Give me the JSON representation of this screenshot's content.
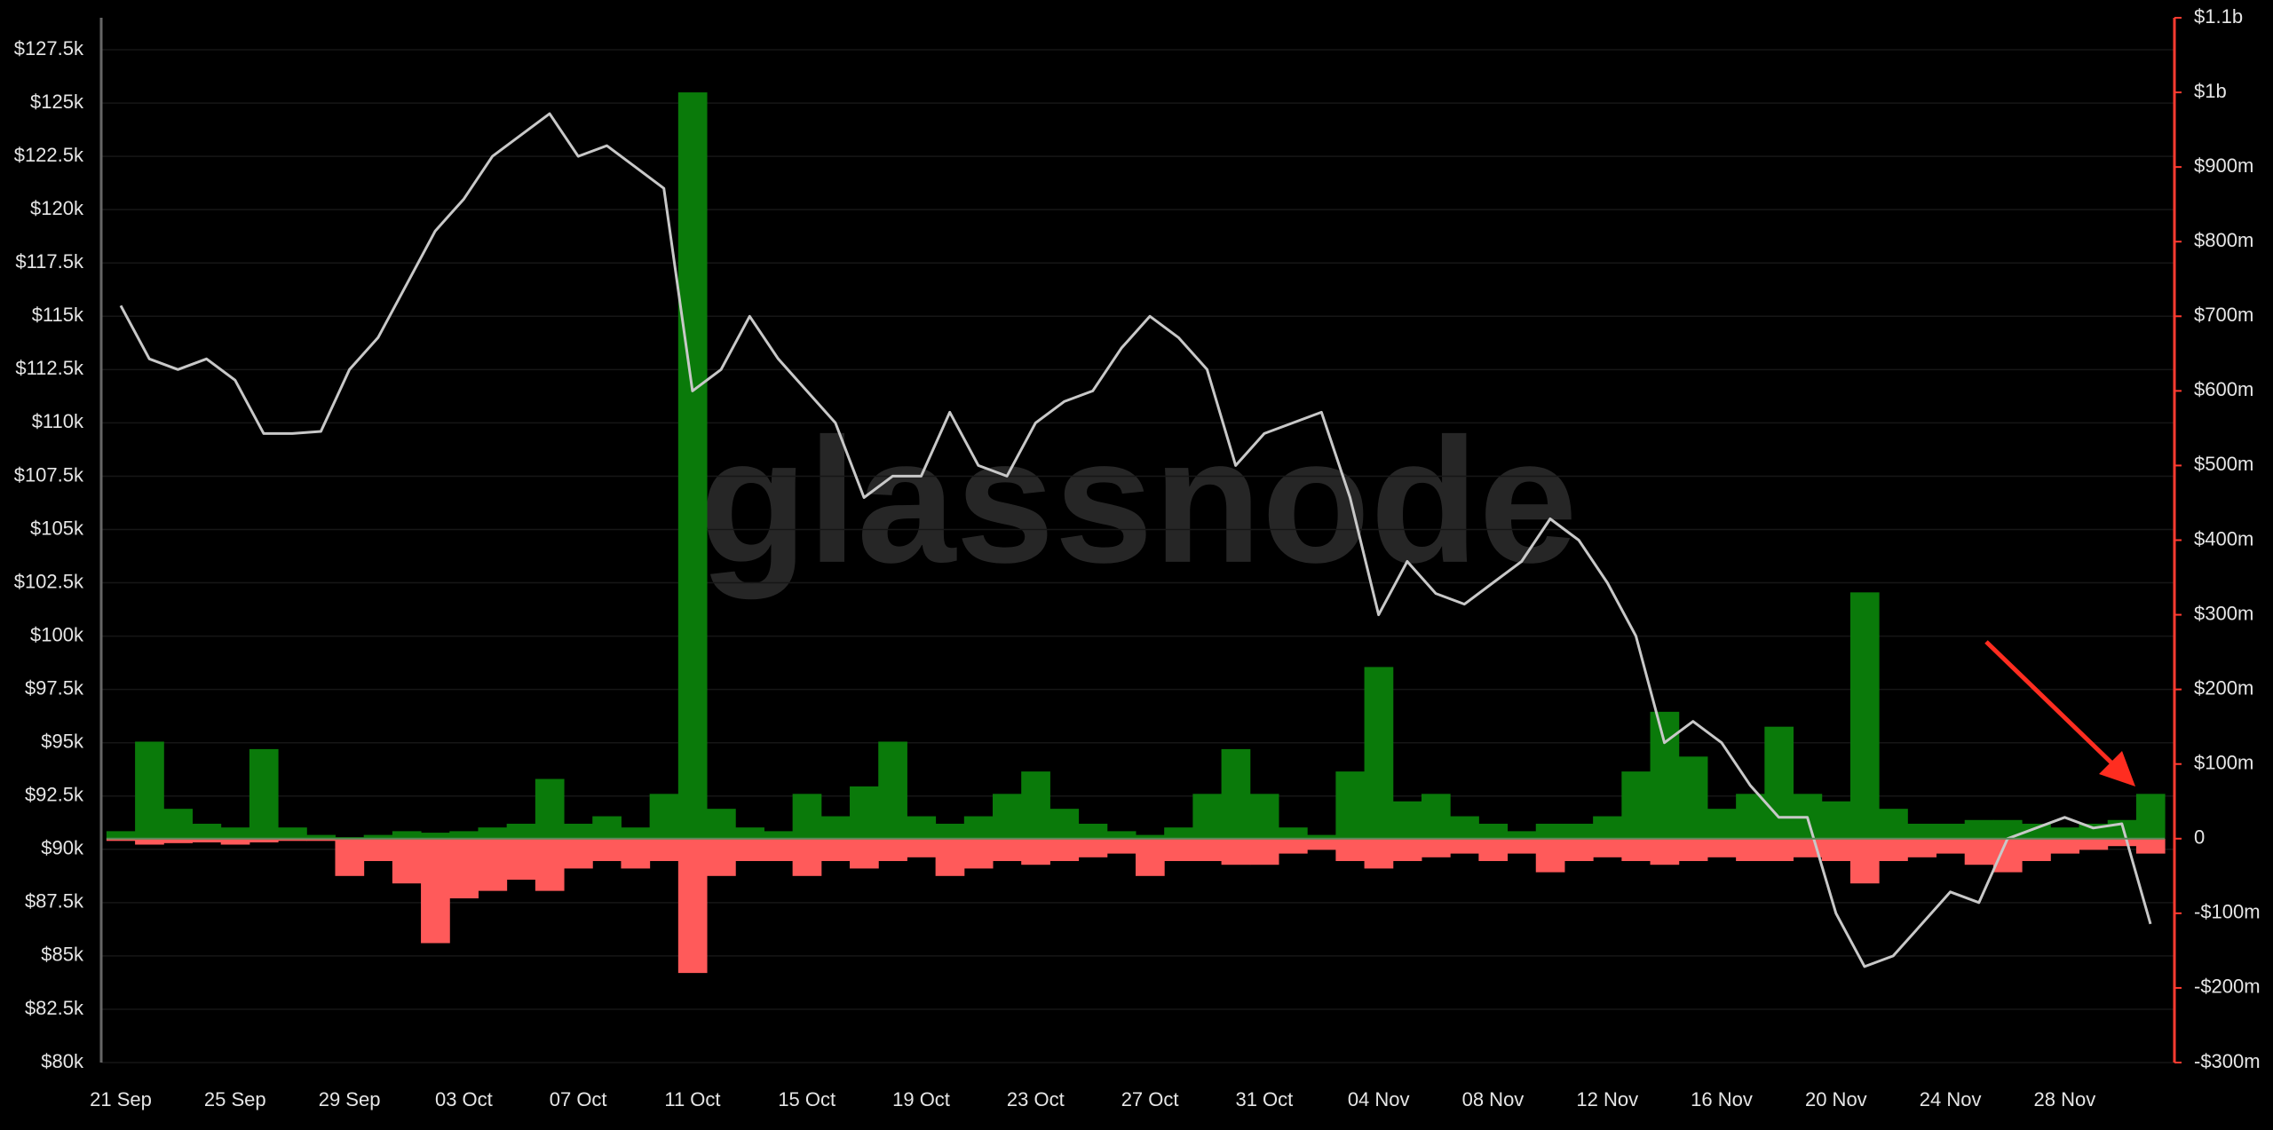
{
  "chart_data": {
    "type": "combo",
    "watermark": "glassnode",
    "categories": [
      "21 Sep",
      null,
      null,
      null,
      "25 Sep",
      null,
      null,
      null,
      "29 Sep",
      null,
      null,
      null,
      "03 Oct",
      null,
      null,
      null,
      "07 Oct",
      null,
      null,
      null,
      "11 Oct",
      null,
      null,
      null,
      "15 Oct",
      null,
      null,
      null,
      "19 Oct",
      null,
      null,
      null,
      "23 Oct",
      null,
      null,
      null,
      "27 Oct",
      null,
      null,
      null,
      "31 Oct",
      null,
      null,
      null,
      "04 Nov",
      null,
      null,
      null,
      "08 Nov",
      null,
      null,
      null,
      "12 Nov",
      null,
      null,
      null,
      "16 Nov",
      null,
      null,
      null,
      "20 Nov",
      null,
      null,
      null,
      "24 Nov",
      null,
      null,
      null,
      "28 Nov",
      null,
      null,
      null
    ],
    "series": [
      {
        "type": "line",
        "axis": "y",
        "color": "#c8c8c8",
        "values": [
          115500,
          113000,
          112500,
          113000,
          112000,
          109500,
          109500,
          109600,
          112500,
          114000,
          116500,
          119000,
          120500,
          122500,
          123500,
          124500,
          122500,
          123000,
          122000,
          121000,
          111500,
          112500,
          115000,
          113000,
          111500,
          110000,
          106500,
          107500,
          107500,
          110500,
          108000,
          107500,
          110000,
          111000,
          111500,
          113500,
          115000,
          114000,
          112500,
          108000,
          109500,
          110000,
          110500,
          106500,
          101000,
          103500,
          102000,
          101500,
          102500,
          103500,
          105500,
          104500,
          102500,
          100000,
          95000,
          96000,
          95000,
          93000,
          91500,
          91500,
          87000,
          84500,
          85000,
          86500,
          88000,
          87500,
          90500,
          91000,
          91500,
          91000,
          91200,
          86500
        ]
      },
      {
        "type": "bar",
        "axis": "y2",
        "color": "#0a7a0a",
        "values": [
          10,
          130,
          40,
          20,
          15,
          120,
          15,
          5,
          2,
          5,
          10,
          8,
          10,
          15,
          20,
          80,
          20,
          30,
          15,
          60,
          1000,
          40,
          15,
          10,
          60,
          30,
          70,
          130,
          30,
          20,
          30,
          60,
          90,
          40,
          20,
          10,
          5,
          15,
          60,
          120,
          60,
          15,
          5,
          90,
          230,
          50,
          60,
          30,
          20,
          10,
          20,
          20,
          30,
          90,
          170,
          110,
          40,
          60,
          150,
          60,
          50,
          330,
          40,
          20,
          20,
          25,
          25,
          20,
          15,
          20,
          25,
          60
        ]
      },
      {
        "type": "bar",
        "axis": "y2",
        "color": "#ff5a5a",
        "values": [
          -3,
          -8,
          -6,
          -5,
          -8,
          -5,
          -3,
          -3,
          -50,
          -30,
          -60,
          -140,
          -80,
          -70,
          -55,
          -70,
          -40,
          -30,
          -40,
          -30,
          -180,
          -50,
          -30,
          -30,
          -50,
          -30,
          -40,
          -30,
          -25,
          -50,
          -40,
          -30,
          -35,
          -30,
          -25,
          -20,
          -50,
          -30,
          -30,
          -35,
          -35,
          -20,
          -15,
          -30,
          -40,
          -30,
          -25,
          -20,
          -30,
          -20,
          -45,
          -30,
          -25,
          -30,
          -35,
          -30,
          -25,
          -30,
          -30,
          -25,
          -30,
          -60,
          -30,
          -25,
          -20,
          -35,
          -45,
          -30,
          -20,
          -15,
          -10,
          -20
        ]
      }
    ],
    "ylim": [
      80000,
      129000
    ],
    "yticks": [
      {
        "value": 80000,
        "label": "$80k"
      },
      {
        "value": 82500,
        "label": "$82.5k"
      },
      {
        "value": 85000,
        "label": "$85k"
      },
      {
        "value": 87500,
        "label": "$87.5k"
      },
      {
        "value": 90000,
        "label": "$90k"
      },
      {
        "value": 92500,
        "label": "$92.5k"
      },
      {
        "value": 95000,
        "label": "$95k"
      },
      {
        "value": 97500,
        "label": "$97.5k"
      },
      {
        "value": 100000,
        "label": "$100k"
      },
      {
        "value": 102500,
        "label": "$102.5k"
      },
      {
        "value": 105000,
        "label": "$105k"
      },
      {
        "value": 107500,
        "label": "$107.5k"
      },
      {
        "value": 110000,
        "label": "$110k"
      },
      {
        "value": 112500,
        "label": "$112.5k"
      },
      {
        "value": 115000,
        "label": "$115k"
      },
      {
        "value": 117500,
        "label": "$117.5k"
      },
      {
        "value": 120000,
        "label": "$120k"
      },
      {
        "value": 122500,
        "label": "$122.5k"
      },
      {
        "value": 125000,
        "label": "$125k"
      },
      {
        "value": 127500,
        "label": "$127.5k"
      }
    ],
    "y2lim": [
      -300,
      1100
    ],
    "y2ticks": [
      {
        "value": -300,
        "label": "-$300m"
      },
      {
        "value": -200,
        "label": "-$200m"
      },
      {
        "value": -100,
        "label": "-$100m"
      },
      0,
      {
        "value": 100,
        "label": "$100m"
      },
      {
        "value": 200,
        "label": "$200m"
      },
      {
        "value": 300,
        "label": "$300m"
      },
      {
        "value": 400,
        "label": "$400m"
      },
      {
        "value": 500,
        "label": "$500m"
      },
      {
        "value": 600,
        "label": "$600m"
      },
      {
        "value": 700,
        "label": "$700m"
      },
      {
        "value": 800,
        "label": "$800m"
      },
      {
        "value": 900,
        "label": "$900m"
      },
      {
        "value": 1000,
        "label": "$1b"
      },
      {
        "value": 1100,
        "label": "$1.1b"
      }
    ],
    "grid": true,
    "y2_axis_color": "#ff3b30"
  }
}
